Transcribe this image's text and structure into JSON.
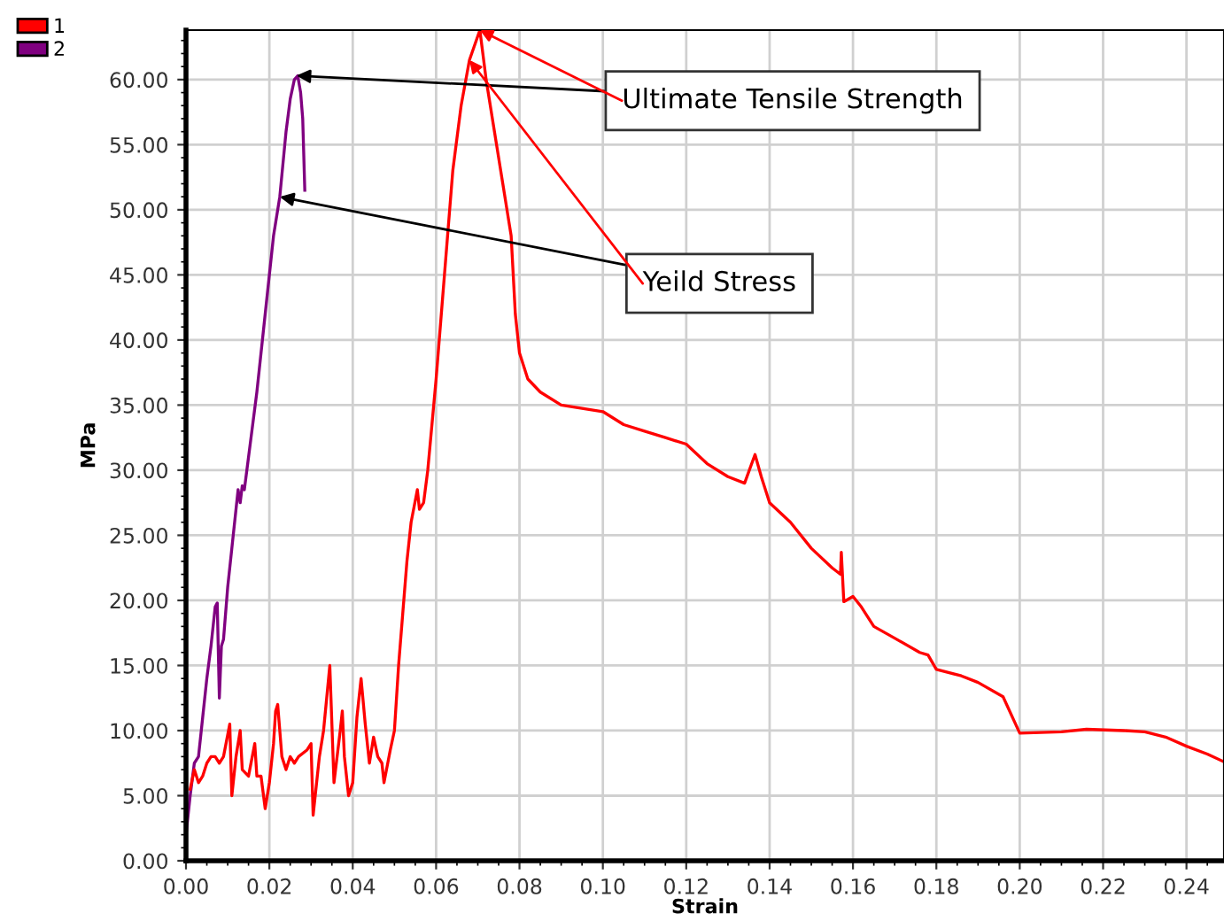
{
  "chart_data": {
    "type": "line",
    "xlabel": "Strain",
    "ylabel": "MPa",
    "xlim": [
      0,
      0.249
    ],
    "ylim": [
      0,
      63.8
    ],
    "xticks": [
      {
        "value": 0,
        "label": "0.00"
      },
      {
        "value": 0.02,
        "label": "0.02"
      },
      {
        "value": 0.04,
        "label": "0.04"
      },
      {
        "value": 0.06,
        "label": "0.06"
      },
      {
        "value": 0.08,
        "label": "0.08"
      },
      {
        "value": 0.1,
        "label": "0.10"
      },
      {
        "value": 0.12,
        "label": "0.12"
      },
      {
        "value": 0.14,
        "label": "0.14"
      },
      {
        "value": 0.16,
        "label": "0.16"
      },
      {
        "value": 0.18,
        "label": "0.18"
      },
      {
        "value": 0.2,
        "label": "0.20"
      },
      {
        "value": 0.22,
        "label": "0.22"
      },
      {
        "value": 0.24,
        "label": "0.24"
      }
    ],
    "yticks": [
      {
        "value": 0,
        "label": "0.00"
      },
      {
        "value": 5,
        "label": "5.00"
      },
      {
        "value": 10,
        "label": "10.00"
      },
      {
        "value": 15,
        "label": "15.00"
      },
      {
        "value": 20,
        "label": "20.00"
      },
      {
        "value": 25,
        "label": "25.00"
      },
      {
        "value": 30,
        "label": "30.00"
      },
      {
        "value": 35,
        "label": "35.00"
      },
      {
        "value": 40,
        "label": "40.00"
      },
      {
        "value": 45,
        "label": "45.00"
      },
      {
        "value": 50,
        "label": "50.00"
      },
      {
        "value": 55,
        "label": "55.00"
      },
      {
        "value": 60,
        "label": "60.00"
      }
    ],
    "grid": true,
    "legend": "top left",
    "marker": "none",
    "line_style": "solid",
    "annotations": [
      {
        "text": "Ultimate Tensile Strength",
        "x": 0.0265,
        "y": 60.3
      },
      {
        "text": "Yeild Stress",
        "x": 0.0225,
        "y": 51
      }
    ],
    "series": [
      {
        "name": "1",
        "color": "#ff0000",
        "x": [
          0.001,
          0.002,
          0.003,
          0.004,
          0.005,
          0.006,
          0.007,
          0.008,
          0.009,
          0.0105,
          0.011,
          0.012,
          0.013,
          0.0135,
          0.015,
          0.0165,
          0.017,
          0.018,
          0.019,
          0.02,
          0.021,
          0.0215,
          0.022,
          0.023,
          0.024,
          0.025,
          0.026,
          0.027,
          0.029,
          0.03,
          0.0305,
          0.032,
          0.033,
          0.0345,
          0.0355,
          0.037,
          0.0375,
          0.038,
          0.039,
          0.04,
          0.041,
          0.042,
          0.043,
          0.044,
          0.045,
          0.046,
          0.047,
          0.0475,
          0.049,
          0.05,
          0.051,
          0.052,
          0.053,
          0.054,
          0.0555,
          0.056,
          0.057,
          0.058,
          0.06,
          0.062,
          0.064,
          0.066,
          0.068,
          0.0705,
          0.072,
          0.074,
          0.076,
          0.078,
          0.079,
          0.08,
          0.082,
          0.085,
          0.09,
          0.1,
          0.105,
          0.11,
          0.115,
          0.12,
          0.125,
          0.13,
          0.134,
          0.1365,
          0.138,
          0.14,
          0.145,
          0.15,
          0.155,
          0.157,
          0.1572,
          0.1578,
          0.16,
          0.162,
          0.165,
          0.17,
          0.176,
          0.178,
          0.18,
          0.186,
          0.19,
          0.196,
          0.199,
          0.2,
          0.21,
          0.216,
          0.225,
          0.23,
          0.235,
          0.24,
          0.245,
          0.249
        ],
        "values": [
          5.5,
          7,
          6,
          6.5,
          7.5,
          8,
          8,
          7.5,
          8,
          10.5,
          5,
          8,
          10,
          7,
          6.5,
          9,
          6.5,
          6.5,
          4,
          6,
          9,
          11.5,
          12,
          8,
          7,
          8,
          7.5,
          8,
          8.5,
          9,
          3.5,
          8,
          10,
          15,
          6,
          10,
          11.5,
          8,
          5,
          6,
          11,
          14,
          10.5,
          7.5,
          9.5,
          8,
          7.5,
          6,
          8.5,
          10,
          15,
          19,
          23,
          26,
          28.5,
          27,
          27.5,
          30,
          37,
          45,
          53,
          58,
          61.5,
          63.8,
          60,
          56,
          52,
          48,
          42,
          39,
          37,
          36,
          35,
          34.5,
          33.5,
          33,
          32.5,
          32,
          30.5,
          29.5,
          29,
          31.2,
          29.5,
          27.5,
          26,
          24,
          22.5,
          22,
          23.7,
          19.9,
          20.3,
          19.5,
          18,
          17.1,
          16,
          15.8,
          14.7,
          14.2,
          13.7,
          12.6,
          10.5,
          9.8,
          9.9,
          10.1,
          10,
          9.9,
          9.5,
          8.8,
          8.2,
          7.6
        ]
      },
      {
        "name": "2",
        "color": "#800080",
        "x": [
          0,
          0.001,
          0.002,
          0.003,
          0.004,
          0.005,
          0.006,
          0.007,
          0.0075,
          0.008,
          0.0085,
          0.009,
          0.01,
          0.011,
          0.012,
          0.0125,
          0.013,
          0.0135,
          0.014,
          0.015,
          0.017,
          0.019,
          0.021,
          0.0225,
          0.024,
          0.025,
          0.026,
          0.0268,
          0.0275,
          0.028,
          0.0285
        ],
        "values": [
          2,
          5,
          7.5,
          8,
          11,
          14,
          16.5,
          19.5,
          19.8,
          12.5,
          16.5,
          17,
          21,
          24,
          27,
          28.5,
          27.5,
          28.8,
          28.5,
          31,
          36,
          42,
          48,
          51,
          56,
          58.5,
          60,
          60.3,
          59,
          57,
          51.5
        ]
      }
    ]
  }
}
